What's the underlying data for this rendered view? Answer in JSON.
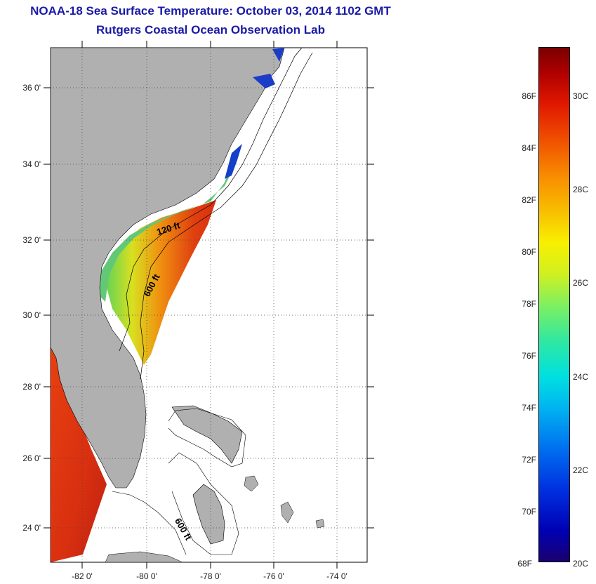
{
  "title_line1": "NOAA-18 Sea Surface Temperature:  October 03, 2014 1102 GMT",
  "title_line2": "Rutgers Coastal Ocean Observation Lab",
  "lat_labels": [
    "36 0'",
    "34 0'",
    "32 0'",
    "30 0'",
    "28 0'",
    "26 0'",
    "24 0'"
  ],
  "lon_labels": [
    "-82 0'",
    "-80 0'",
    "-78 0'",
    "-76 0'",
    "-74 0'"
  ],
  "contour_labels": [
    "120 ft",
    "600 ft",
    "600 ft"
  ],
  "colorbar": {
    "fahrenheit": [
      "86F",
      "84F",
      "82F",
      "80F",
      "78F",
      "76F",
      "74F",
      "72F",
      "70F",
      "68F"
    ],
    "celsius": [
      "30C",
      "28C",
      "26C",
      "24C",
      "22C",
      "20C"
    ],
    "min_label_f": "68F",
    "min_label_c": "20C"
  },
  "colors": {
    "land": "#b0b0b0",
    "ocean_bg": "#ffffff",
    "title": "#1a1aa6"
  }
}
